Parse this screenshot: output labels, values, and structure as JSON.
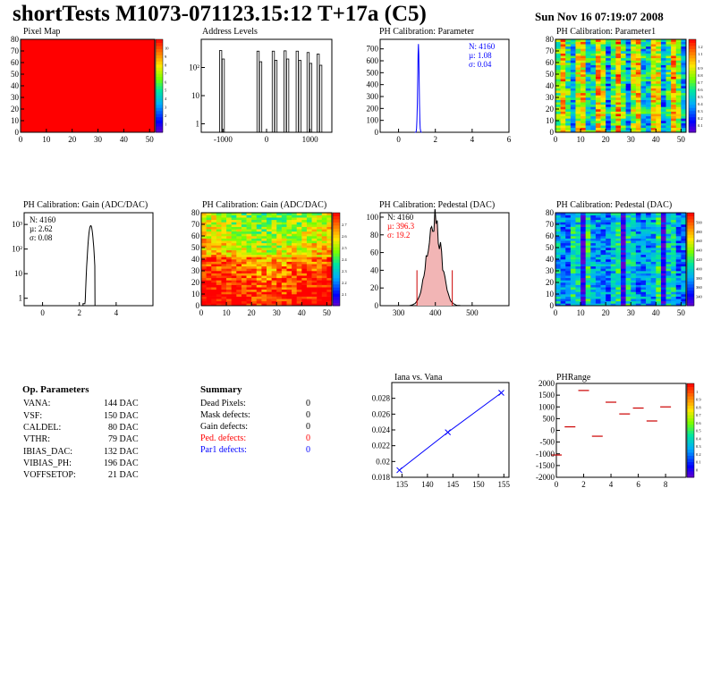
{
  "header": {
    "title": "shortTests M1073-071123.15:12 T+17a (C5)",
    "date": "Sun Nov 16 07:19:07 2008"
  },
  "colors": {
    "red": "#ff0000",
    "blue": "#0000ff",
    "dark_red": "#cc0000"
  },
  "chart_data": [
    {
      "id": "pixel_map",
      "type": "heatmap",
      "title": "Pixel Map",
      "xlim": [
        0,
        52
      ],
      "ylim": [
        0,
        80
      ],
      "xticks": [
        "0",
        "10",
        "20",
        "30",
        "40",
        "50"
      ],
      "yticks": [
        "0",
        "10",
        "20",
        "30",
        "40",
        "50",
        "60",
        "70",
        "80"
      ],
      "value": 10,
      "zlim": [
        0,
        10
      ],
      "zticks": [
        "1",
        "2",
        "3",
        "4",
        "5",
        "6",
        "7",
        "8",
        "9",
        "10"
      ]
    },
    {
      "id": "address_levels",
      "type": "histogram",
      "title": "Address Levels",
      "xlim": [
        -1500,
        1500
      ],
      "ylim_log": [
        0.5,
        1000
      ],
      "xticks": [
        "-1000",
        "0",
        "1000"
      ],
      "yticks": [
        "1",
        "10",
        "10²"
      ],
      "peaks": [
        [
          -1060,
          400
        ],
        [
          -1000,
          200
        ],
        [
          -200,
          380
        ],
        [
          -140,
          160
        ],
        [
          150,
          380
        ],
        [
          210,
          180
        ],
        [
          420,
          390
        ],
        [
          480,
          200
        ],
        [
          700,
          380
        ],
        [
          760,
          180
        ],
        [
          950,
          340
        ],
        [
          1010,
          140
        ],
        [
          1180,
          300
        ],
        [
          1240,
          120
        ]
      ]
    },
    {
      "id": "ph_cal_param",
      "type": "histogram",
      "title": "PH Calibration: Parameter",
      "xlim": [
        -1,
        6
      ],
      "ylim": [
        0,
        780
      ],
      "xticks": [
        "0",
        "2",
        "4",
        "6"
      ],
      "yticks": [
        "0",
        "100",
        "200",
        "300",
        "400",
        "500",
        "600",
        "700"
      ],
      "mean": 1.08,
      "sigma": 0.04,
      "peak": 740,
      "stats": [
        "N: 4160",
        "µ: 1.08",
        "σ: 0.04"
      ]
    },
    {
      "id": "ph_cal_param1",
      "type": "heatmap",
      "title": "PH Calibration: Parameter1",
      "xlim": [
        0,
        52
      ],
      "ylim": [
        0,
        80
      ],
      "xticks": [
        "0",
        "10",
        "20",
        "30",
        "40",
        "50"
      ],
      "yticks": [
        "0",
        "10",
        "20",
        "30",
        "40",
        "50",
        "60",
        "70",
        "80"
      ],
      "zticks": [
        "0.1",
        "0.2",
        "0.3",
        "0.4",
        "0.5",
        "0.6",
        "0.7",
        "0.8",
        "0.9",
        "1",
        "1.1",
        "1.2"
      ]
    },
    {
      "id": "ph_cal_gain",
      "type": "histogram",
      "title": "PH Calibration: Gain (ADC/DAC)",
      "xlim": [
        -1,
        6
      ],
      "ylim_log": [
        0.5,
        3000
      ],
      "xticks": [
        "0",
        "2",
        "4"
      ],
      "yticks": [
        "1",
        "10",
        "10²",
        "10³"
      ],
      "mean": 2.62,
      "sigma": 0.08,
      "peak": 900,
      "stats": [
        "N: 4160",
        "µ: 2.62",
        "σ: 0.08"
      ]
    },
    {
      "id": "ph_cal_gain_map",
      "type": "heatmap",
      "title": "PH Calibration: Gain (ADC/DAC)",
      "xlim": [
        0,
        52
      ],
      "ylim": [
        0,
        80
      ],
      "xticks": [
        "0",
        "10",
        "20",
        "30",
        "40",
        "50"
      ],
      "yticks": [
        "0",
        "10",
        "20",
        "30",
        "40",
        "50",
        "60",
        "70",
        "80"
      ],
      "zticks": [
        "2.1",
        "2.2",
        "2.3",
        "2.4",
        "2.5",
        "2.6",
        "2.7"
      ]
    },
    {
      "id": "ph_cal_pedestal",
      "type": "histogram",
      "title": "PH Calibration: Pedestal (DAC)",
      "xlim": [
        250,
        600
      ],
      "ylim": [
        0,
        105
      ],
      "xticks": [
        "300",
        "400",
        "500"
      ],
      "yticks": [
        "0",
        "20",
        "40",
        "60",
        "80",
        "100"
      ],
      "mean": 396.3,
      "sigma": 19.2,
      "peak": 98,
      "cut_lines": [
        350,
        446
      ],
      "stats": [
        "N: 4160",
        "µ: 396.3",
        "σ: 19.2"
      ]
    },
    {
      "id": "ph_cal_pedestal_map",
      "type": "heatmap",
      "title": "PH Calibration: Pedestal (DAC)",
      "xlim": [
        0,
        52
      ],
      "ylim": [
        0,
        80
      ],
      "xticks": [
        "0",
        "10",
        "20",
        "30",
        "40",
        "50"
      ],
      "yticks": [
        "0",
        "10",
        "20",
        "30",
        "40",
        "50",
        "60",
        "70",
        "80"
      ],
      "zticks": [
        "340",
        "360",
        "380",
        "400",
        "420",
        "440",
        "460",
        "480",
        "500"
      ]
    },
    {
      "id": "iana_vana",
      "type": "line",
      "title": "Iana vs. Vana",
      "x": [
        134.5,
        144,
        154.5
      ],
      "y": [
        0.0189,
        0.0237,
        0.0287
      ],
      "xlim": [
        133,
        156
      ],
      "ylim": [
        0.018,
        0.03
      ],
      "xticks": [
        "135",
        "140",
        "145",
        "150",
        "155"
      ],
      "yticks": [
        "0.018",
        "0.02",
        "0.022",
        "0.024",
        "0.026",
        "0.028"
      ]
    },
    {
      "id": "ph_range",
      "type": "scatter",
      "title": "PHRange",
      "x": [
        0,
        1,
        2,
        3,
        4,
        5,
        6,
        7,
        8
      ],
      "y": [
        -1050,
        150,
        1700,
        -250,
        1200,
        700,
        950,
        400,
        1000
      ],
      "xlim": [
        0,
        9.5
      ],
      "ylim": [
        -2000,
        2000
      ],
      "xticks": [
        "0",
        "2",
        "4",
        "6",
        "8"
      ],
      "yticks": [
        "-2000",
        "-1500",
        "-1000",
        "-500",
        "0",
        "500",
        "1000",
        "1500",
        "2000"
      ],
      "zticks": [
        "0",
        "0.1",
        "0.2",
        "0.3",
        "0.4",
        "0.5",
        "0.6",
        "0.7",
        "0.8",
        "0.9",
        "1"
      ]
    }
  ],
  "op_params": {
    "title": "Op. Parameters",
    "rows": [
      {
        "name": "VANA:",
        "value": "144 DAC"
      },
      {
        "name": "VSF:",
        "value": "150 DAC"
      },
      {
        "name": "CALDEL:",
        "value": "80 DAC"
      },
      {
        "name": "VTHR:",
        "value": "79 DAC"
      },
      {
        "name": "IBIAS_DAC:",
        "value": "132 DAC"
      },
      {
        "name": "VIBIAS_PH:",
        "value": "196 DAC"
      },
      {
        "name": "VOFFSETOP:",
        "value": "21 DAC"
      }
    ]
  },
  "summary": {
    "title": "Summary",
    "rows": [
      {
        "name": "Dead Pixels:",
        "value": "0",
        "color": "#000000"
      },
      {
        "name": "Mask defects:",
        "value": "0",
        "color": "#000000"
      },
      {
        "name": "Gain defects:",
        "value": "0",
        "color": "#000000"
      },
      {
        "name": "Ped. defects:",
        "value": "0",
        "color": "#ff0000"
      },
      {
        "name": "Par1 defects:",
        "value": "0",
        "color": "#0000ff"
      }
    ]
  }
}
